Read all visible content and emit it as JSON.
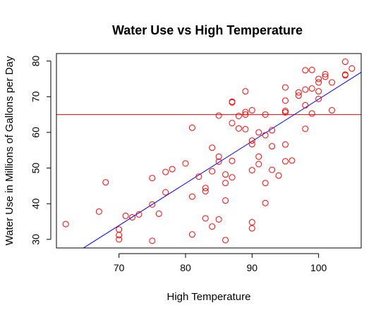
{
  "chart_data": {
    "type": "scatter",
    "title": "Water Use vs High Temperature",
    "xlabel": "High Temperature",
    "ylabel": "Water Use in Millions of Gallons per Day",
    "xlim": [
      60.6,
      106.4
    ],
    "ylim": [
      27.6,
      82.1
    ],
    "x_ticks": [
      70,
      80,
      90,
      100
    ],
    "y_ticks": [
      30,
      40,
      50,
      60,
      70,
      80
    ],
    "grid": false,
    "legend": "none",
    "point_color": "#ff0000",
    "regression_line": {
      "color": "#0000ff",
      "intercept": -48.7,
      "slope": 1.18
    },
    "reference_line": {
      "color": "#ff0000",
      "y": 65.0
    },
    "points": [
      [
        62,
        34.3
      ],
      [
        67,
        37.8
      ],
      [
        68,
        46.0
      ],
      [
        70,
        30.0
      ],
      [
        70,
        31.2
      ],
      [
        70,
        32.8
      ],
      [
        71,
        36.6
      ],
      [
        72,
        36.2
      ],
      [
        73,
        37.0
      ],
      [
        75,
        29.6
      ],
      [
        75,
        39.8
      ],
      [
        75,
        47.2
      ],
      [
        76,
        37.2
      ],
      [
        77,
        43.2
      ],
      [
        77,
        48.9
      ],
      [
        78,
        49.7
      ],
      [
        80,
        51.3
      ],
      [
        81,
        31.4
      ],
      [
        81,
        42.0
      ],
      [
        81,
        61.3
      ],
      [
        82,
        47.6
      ],
      [
        83,
        35.9
      ],
      [
        83,
        43.5
      ],
      [
        83,
        44.4
      ],
      [
        84,
        33.6
      ],
      [
        84,
        49.1
      ],
      [
        84,
        55.7
      ],
      [
        85,
        35.6
      ],
      [
        85,
        51.8
      ],
      [
        85,
        53.2
      ],
      [
        85,
        64.7
      ],
      [
        86,
        29.8
      ],
      [
        86,
        40.9
      ],
      [
        86,
        45.8
      ],
      [
        86,
        48.2
      ],
      [
        87,
        47.4
      ],
      [
        87,
        52.0
      ],
      [
        87,
        62.6
      ],
      [
        87,
        68.4
      ],
      [
        87,
        68.6
      ],
      [
        88,
        61.1
      ],
      [
        88,
        64.6
      ],
      [
        89,
        60.9
      ],
      [
        89,
        65.0
      ],
      [
        89,
        65.7
      ],
      [
        89,
        71.5
      ],
      [
        90,
        33.1
      ],
      [
        90,
        34.8
      ],
      [
        90,
        49.4
      ],
      [
        90,
        56.7
      ],
      [
        90,
        57.7
      ],
      [
        90,
        66.2
      ],
      [
        91,
        51.1
      ],
      [
        91,
        53.2
      ],
      [
        91,
        60.0
      ],
      [
        92,
        40.2
      ],
      [
        92,
        45.8
      ],
      [
        92,
        59.2
      ],
      [
        92,
        65.0
      ],
      [
        93,
        49.5
      ],
      [
        93,
        56.1
      ],
      [
        93,
        60.6
      ],
      [
        94,
        47.9
      ],
      [
        95,
        51.9
      ],
      [
        95,
        56.6
      ],
      [
        95,
        65.6
      ],
      [
        95,
        66.0
      ],
      [
        95,
        72.6
      ],
      [
        95,
        68.9
      ],
      [
        96,
        52.1
      ],
      [
        97,
        70.3
      ],
      [
        97,
        71.2
      ],
      [
        98,
        61.0
      ],
      [
        98,
        67.6
      ],
      [
        98,
        72.0
      ],
      [
        98,
        77.4
      ],
      [
        99,
        65.3
      ],
      [
        99,
        72.3
      ],
      [
        99,
        77.5
      ],
      [
        100,
        69.4
      ],
      [
        100,
        71.5
      ],
      [
        100,
        74.0
      ],
      [
        100,
        75.0
      ],
      [
        101,
        75.6
      ],
      [
        101,
        76.3
      ],
      [
        102,
        66.2
      ],
      [
        102,
        74.0
      ],
      [
        104,
        76.0
      ],
      [
        104,
        76.2
      ],
      [
        104,
        79.8
      ],
      [
        105,
        77.9
      ]
    ]
  }
}
